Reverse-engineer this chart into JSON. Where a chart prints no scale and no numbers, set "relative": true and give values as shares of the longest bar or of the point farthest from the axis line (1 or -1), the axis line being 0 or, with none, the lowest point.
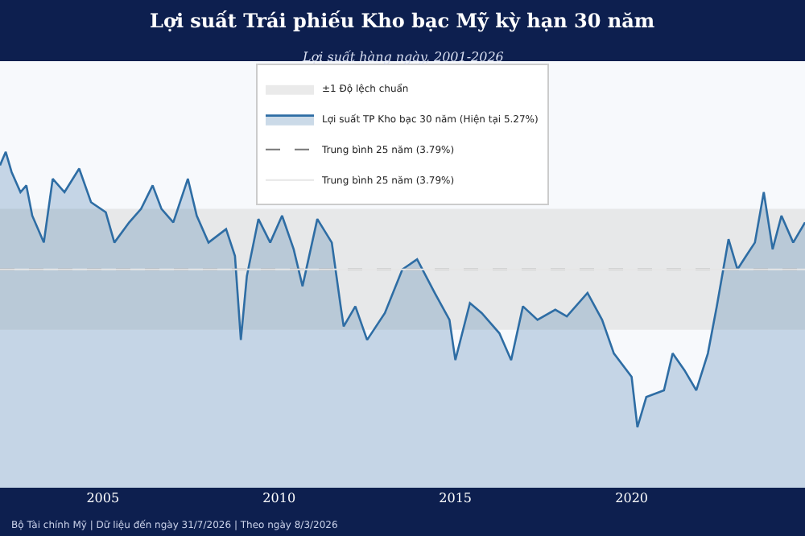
{
  "chart_data": {
    "type": "area",
    "title": "Lợi suất Trái phiếu Kho bạc Mỹ kỳ hạn 30 năm",
    "subtitle": "Lợi suất hàng ngày, 2001-2026",
    "relative": true,
    "legend": "top",
    "xlim": [
      "2002-02",
      "2024-12"
    ],
    "xticks": [
      {
        "value": "2005-01-01",
        "label": "2005"
      },
      {
        "value": "2010-01-01",
        "label": "2010"
      },
      {
        "value": "2015-01-01",
        "label": "2015"
      },
      {
        "value": "2020-01-01",
        "label": "2020"
      }
    ],
    "x": [
      "2002-02",
      "2002-04",
      "2002-06",
      "2002-09",
      "2002-11",
      "2003-01",
      "2003-05",
      "2003-08",
      "2003-12",
      "2004-05",
      "2004-09",
      "2005-02",
      "2005-05",
      "2005-10",
      "2006-02",
      "2006-06",
      "2006-09",
      "2007-01",
      "2007-06",
      "2007-09",
      "2008-01",
      "2008-07",
      "2008-10",
      "2008-12",
      "2009-02",
      "2009-06",
      "2009-10",
      "2010-02",
      "2010-06",
      "2010-09",
      "2011-02",
      "2011-07",
      "2011-10",
      "2011-11",
      "2012-03",
      "2012-07",
      "2013-01",
      "2013-07",
      "2013-12",
      "2014-06",
      "2014-11",
      "2015-01",
      "2015-06",
      "2015-10",
      "2016-04",
      "2016-08",
      "2016-12",
      "2017-05",
      "2017-11",
      "2018-03",
      "2018-10",
      "2019-03",
      "2019-07",
      "2020-01",
      "2020-03",
      "2020-06",
      "2020-12",
      "2021-03",
      "2021-07",
      "2021-11",
      "2022-03",
      "2022-06",
      "2022-10",
      "2023-01",
      "2023-04",
      "2023-07",
      "2023-10",
      "2024-01",
      "2024-04",
      "2024-08",
      "2024-12"
    ],
    "series": [
      {
        "name": "Lợi suất TP Kho bạc 30 năm (Hiện tại 5.27%)",
        "color": "#2e6da4",
        "values": [
          0.96,
          1.0,
          0.94,
          0.88,
          0.9,
          0.81,
          0.73,
          0.92,
          0.88,
          0.95,
          0.85,
          0.82,
          0.73,
          0.79,
          0.83,
          0.9,
          0.83,
          0.79,
          0.92,
          0.81,
          0.73,
          0.77,
          0.69,
          0.44,
          0.63,
          0.8,
          0.73,
          0.81,
          0.71,
          0.6,
          0.8,
          0.73,
          0.54,
          0.48,
          0.54,
          0.44,
          0.52,
          0.65,
          0.68,
          0.58,
          0.5,
          0.38,
          0.55,
          0.52,
          0.46,
          0.38,
          0.54,
          0.5,
          0.53,
          0.51,
          0.58,
          0.5,
          0.4,
          0.33,
          0.18,
          0.27,
          0.29,
          0.4,
          0.35,
          0.29,
          0.4,
          0.54,
          0.74,
          0.65,
          0.69,
          0.73,
          0.88,
          0.71,
          0.81,
          0.73,
          0.79
        ]
      }
    ],
    "ref_lines": [
      {
        "axis": "y",
        "value": 0.65,
        "label": "Trung bình 25 năm (3.79%)",
        "color": "#777777",
        "line_style": "dashed"
      },
      {
        "axis": "y",
        "value": 0.65,
        "label": "Trung bình 25 năm (3.79%)",
        "color": "#e6e6e6",
        "line_style": "solid"
      }
    ],
    "bands": [
      {
        "axis": "y",
        "from": 0.47,
        "to": 0.83,
        "label": "±1 Độ lệch chuẩn",
        "color": "#dcdcdc"
      }
    ],
    "annotations": [
      "Bộ Tài chính Mỹ | Dữ liệu đến ngày 31/7/2026 | Theo ngày 8/3/2026"
    ]
  }
}
